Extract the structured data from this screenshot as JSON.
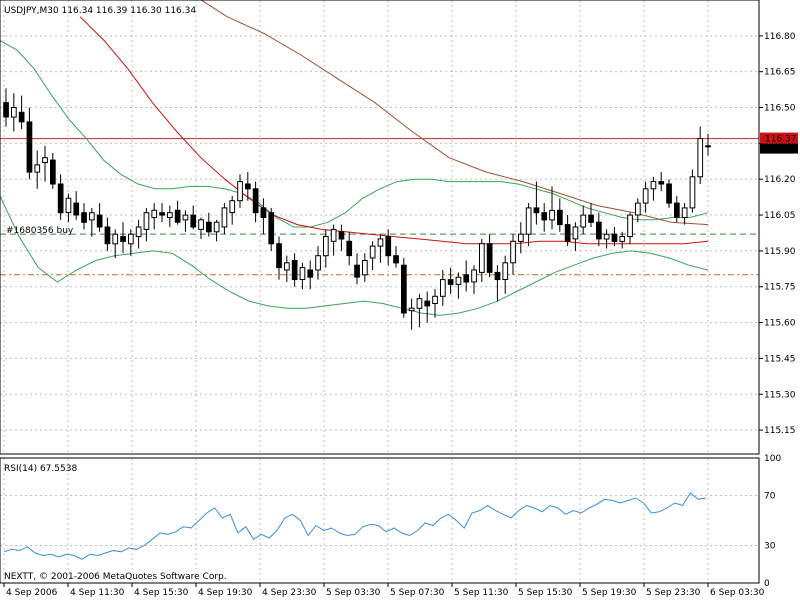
{
  "header": {
    "main_label": "USDJPY,M30  116.34 116.39 116.30 116.34",
    "rsi_label": "RSI(14) 67.5538",
    "copyright": "NEXTT, © 2001-2006 MetaQuotes Software Corp.",
    "order_label": "#1680356 buy"
  },
  "colors": {
    "candle": "#000000",
    "grid": "#c0c0c0",
    "bollinger": "#3aa35a",
    "ma_fast": "#cc1111",
    "ma_slow": "#a0522d",
    "rsi": "#3a8fd8",
    "bid_line": "#cc2222",
    "order_line": "#2e8b3a",
    "stop_line": "#d2691e",
    "price_tag": "#d01010"
  },
  "chart_data": [
    {
      "type": "candlestick",
      "symbol": "USDJPY",
      "timeframe": "M30",
      "ylim": [
        115.05,
        116.95
      ],
      "y_ticks": [
        "116.80",
        "116.65",
        "116.50",
        "116.35",
        "116.20",
        "116.05",
        "115.90",
        "115.75",
        "115.60",
        "115.45",
        "115.30",
        "115.15"
      ],
      "x_ticks": [
        "4 Sep 2006",
        "4 Sep 11:30",
        "4 Sep 15:30",
        "4 Sep 19:30",
        "4 Sep 23:30",
        "5 Sep 03:30",
        "5 Sep 07:30",
        "5 Sep 11:30",
        "5 Sep 15:30",
        "5 Sep 19:30",
        "5 Sep 23:30",
        "6 Sep 03:30"
      ],
      "price_labels": {
        "bid": "116.37",
        "last": "116.34"
      },
      "levels": {
        "bid": 116.37,
        "order": 115.97,
        "stop": 115.8
      },
      "ohlc": [
        [
          116.52,
          116.58,
          116.42,
          116.46
        ],
        [
          116.46,
          116.56,
          116.4,
          116.5
        ],
        [
          116.48,
          116.55,
          116.41,
          116.44
        ],
        [
          116.44,
          116.5,
          116.2,
          116.23
        ],
        [
          116.23,
          116.32,
          116.16,
          116.26
        ],
        [
          116.27,
          116.34,
          116.19,
          116.29
        ],
        [
          116.28,
          116.31,
          116.16,
          116.18
        ],
        [
          116.18,
          116.22,
          116.03,
          116.06
        ],
        [
          116.06,
          116.14,
          116.02,
          116.12
        ],
        [
          116.1,
          116.15,
          116.03,
          116.05
        ],
        [
          116.06,
          116.1,
          115.99,
          116.02
        ],
        [
          116.03,
          116.08,
          115.96,
          116.06
        ],
        [
          116.05,
          116.1,
          115.98,
          116.0
        ],
        [
          116.0,
          116.04,
          115.9,
          115.93
        ],
        [
          115.93,
          115.99,
          115.87,
          115.97
        ],
        [
          115.96,
          116.02,
          115.89,
          115.94
        ],
        [
          115.93,
          115.99,
          115.88,
          115.97
        ],
        [
          115.96,
          116.03,
          115.91,
          116.0
        ],
        [
          115.99,
          116.08,
          115.94,
          116.06
        ],
        [
          116.04,
          116.1,
          115.99,
          116.07
        ],
        [
          116.06,
          116.1,
          116.02,
          116.05
        ],
        [
          116.04,
          116.09,
          116.0,
          116.06
        ],
        [
          116.07,
          116.11,
          116.01,
          116.02
        ],
        [
          116.03,
          116.07,
          115.98,
          116.05
        ],
        [
          116.05,
          116.09,
          115.99,
          116.0
        ],
        [
          115.99,
          116.04,
          115.95,
          116.03
        ],
        [
          116.02,
          116.06,
          115.96,
          115.98
        ],
        [
          115.98,
          116.03,
          115.94,
          116.02
        ],
        [
          116.0,
          116.1,
          115.97,
          116.08
        ],
        [
          116.06,
          116.13,
          116.01,
          116.11
        ],
        [
          116.11,
          116.22,
          116.08,
          116.19
        ],
        [
          116.18,
          116.23,
          116.11,
          116.16
        ],
        [
          116.16,
          116.19,
          116.02,
          116.06
        ],
        [
          116.08,
          116.12,
          115.97,
          116.04
        ],
        [
          116.06,
          116.08,
          115.9,
          115.93
        ],
        [
          115.93,
          115.96,
          115.78,
          115.83
        ],
        [
          115.82,
          115.88,
          115.77,
          115.85
        ],
        [
          115.86,
          115.89,
          115.75,
          115.78
        ],
        [
          115.78,
          115.85,
          115.74,
          115.83
        ],
        [
          115.82,
          115.86,
          115.74,
          115.79
        ],
        [
          115.82,
          115.92,
          115.78,
          115.88
        ],
        [
          115.88,
          115.99,
          115.83,
          115.96
        ],
        [
          115.94,
          116.01,
          115.88,
          115.99
        ],
        [
          115.98,
          116.01,
          115.9,
          115.95
        ],
        [
          115.94,
          115.98,
          115.84,
          115.88
        ],
        [
          115.84,
          115.89,
          115.76,
          115.79
        ],
        [
          115.8,
          115.89,
          115.77,
          115.86
        ],
        [
          115.87,
          115.94,
          115.82,
          115.92
        ],
        [
          115.92,
          115.97,
          115.85,
          115.95
        ],
        [
          115.96,
          115.99,
          115.84,
          115.88
        ],
        [
          115.88,
          115.92,
          115.83,
          115.85
        ],
        [
          115.84,
          115.87,
          115.62,
          115.64
        ],
        [
          115.65,
          115.7,
          115.57,
          115.66
        ],
        [
          115.66,
          115.72,
          115.58,
          115.7
        ],
        [
          115.69,
          115.73,
          115.6,
          115.67
        ],
        [
          115.68,
          115.74,
          115.62,
          115.71
        ],
        [
          115.71,
          115.82,
          115.67,
          115.78
        ],
        [
          115.78,
          115.83,
          115.72,
          115.76
        ],
        [
          115.76,
          115.81,
          115.7,
          115.79
        ],
        [
          115.8,
          115.86,
          115.73,
          115.77
        ],
        [
          115.77,
          115.84,
          115.72,
          115.82
        ],
        [
          115.81,
          115.95,
          115.77,
          115.93
        ],
        [
          115.93,
          115.97,
          115.79,
          115.81
        ],
        [
          115.81,
          115.84,
          115.69,
          115.78
        ],
        [
          115.78,
          115.88,
          115.72,
          115.85
        ],
        [
          115.85,
          115.97,
          115.8,
          115.94
        ],
        [
          115.94,
          116.02,
          115.89,
          115.97
        ],
        [
          115.97,
          116.1,
          115.92,
          116.08
        ],
        [
          116.08,
          116.19,
          116.01,
          116.06
        ],
        [
          116.06,
          116.1,
          115.98,
          116.03
        ],
        [
          116.03,
          116.17,
          115.99,
          116.07
        ],
        [
          116.07,
          116.12,
          115.98,
          116.01
        ],
        [
          116.01,
          116.05,
          115.92,
          115.94
        ],
        [
          115.95,
          116.02,
          115.9,
          116.0
        ],
        [
          116.0,
          116.09,
          115.97,
          116.05
        ],
        [
          116.05,
          116.1,
          116.0,
          116.02
        ],
        [
          116.02,
          116.06,
          115.92,
          115.95
        ],
        [
          115.95,
          115.99,
          115.91,
          115.97
        ],
        [
          115.97,
          116.0,
          115.92,
          115.94
        ],
        [
          115.94,
          115.98,
          115.91,
          115.96
        ],
        [
          115.96,
          116.06,
          115.93,
          116.05
        ],
        [
          116.05,
          116.12,
          116.02,
          116.1
        ],
        [
          116.1,
          116.19,
          116.06,
          116.16
        ],
        [
          116.16,
          116.21,
          116.11,
          116.19
        ],
        [
          116.19,
          116.23,
          116.15,
          116.18
        ],
        [
          116.18,
          116.2,
          116.08,
          116.1
        ],
        [
          116.1,
          116.13,
          116.02,
          116.04
        ],
        [
          116.04,
          116.1,
          116.01,
          116.08
        ],
        [
          116.08,
          116.24,
          116.06,
          116.21
        ],
        [
          116.21,
          116.42,
          116.18,
          116.37
        ],
        [
          116.34,
          116.39,
          116.3,
          116.34
        ]
      ],
      "bollinger_upper": [
        116.78,
        116.74,
        116.66,
        116.55,
        116.45,
        116.37,
        116.28,
        116.22,
        116.18,
        116.16,
        116.16,
        116.17,
        116.17,
        116.16,
        116.14,
        116.1,
        116.04,
        116.0,
        116.0,
        116.02,
        116.06,
        116.12,
        116.16,
        116.19,
        116.2,
        116.2,
        116.19,
        116.19,
        116.19,
        116.19,
        116.18,
        116.16,
        116.14,
        116.11,
        116.08,
        116.06,
        116.04,
        116.03,
        116.03,
        116.04,
        116.04,
        116.06
      ],
      "bollinger_lower": [
        116.13,
        115.96,
        115.83,
        115.77,
        115.82,
        115.86,
        115.88,
        115.89,
        115.9,
        115.89,
        115.84,
        115.78,
        115.73,
        115.69,
        115.67,
        115.66,
        115.66,
        115.67,
        115.68,
        115.69,
        115.68,
        115.66,
        115.64,
        115.63,
        115.64,
        115.66,
        115.69,
        115.73,
        115.77,
        115.81,
        115.84,
        115.87,
        115.89,
        115.9,
        115.89,
        115.87,
        115.84,
        115.82
      ],
      "ma_fast": [
        116.88,
        116.78,
        116.66,
        116.52,
        116.4,
        116.29,
        116.2,
        116.12,
        116.05,
        116.01,
        115.99,
        115.98,
        115.97,
        115.96,
        115.95,
        115.94,
        115.93,
        115.93,
        115.93,
        115.94,
        115.94,
        115.93,
        115.93,
        115.93,
        115.93,
        115.93,
        115.94
      ],
      "ma_slow": [
        116.98,
        116.88,
        116.81,
        116.72,
        116.62,
        116.52,
        116.4,
        116.29,
        116.23,
        116.19,
        116.14,
        116.09,
        116.06,
        116.02,
        116.01
      ]
    },
    {
      "type": "line",
      "name": "RSI(14)",
      "ylim": [
        0,
        100
      ],
      "y_ticks": [
        "100",
        "70",
        "30",
        "0"
      ],
      "series": [
        {
          "name": "RSI(14)",
          "values": [
            25,
            27,
            26,
            29,
            24,
            22,
            23,
            21,
            23,
            22,
            19,
            23,
            22,
            24,
            26,
            25,
            28,
            27,
            30,
            35,
            40,
            39,
            41,
            45,
            44,
            50,
            56,
            60,
            52,
            55,
            40,
            45,
            35,
            39,
            36,
            42,
            52,
            55,
            50,
            38,
            46,
            42,
            44,
            40,
            38,
            39,
            45,
            47,
            46,
            41,
            44,
            40,
            38,
            42,
            48,
            46,
            52,
            55,
            50,
            44,
            56,
            58,
            62,
            58,
            55,
            52,
            58,
            62,
            60,
            57,
            62,
            60,
            55,
            58,
            56,
            60,
            63,
            67,
            66,
            64,
            66,
            68,
            64,
            56,
            57,
            60,
            64,
            62,
            72,
            67,
            68
          ]
        }
      ]
    }
  ]
}
